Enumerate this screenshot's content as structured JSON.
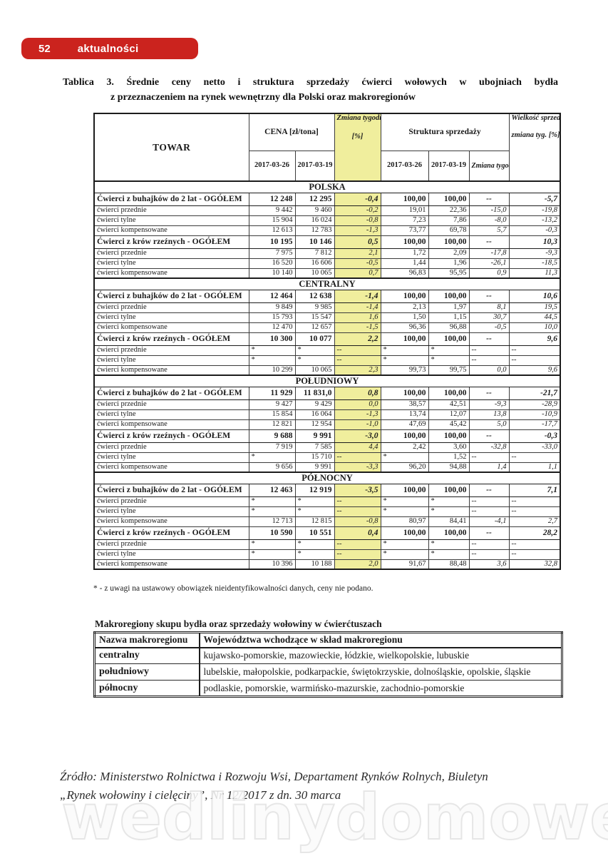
{
  "page": {
    "number": "52",
    "section_label": "aktualności"
  },
  "colors": {
    "accent_red": "#cb231e",
    "highlight_yellow": "#f0ee9d"
  },
  "title": {
    "line1": "Tablica 3. Średnie ceny netto i struktura sprzedaży ćwierci wołowych w ubojniach bydła",
    "line2": "z przeznaczeniem na rynek wewnętrzny dla Polski oraz makroregionów"
  },
  "main_table": {
    "headers": {
      "towar": "TOWAR",
      "cena": "CENA [zł/tona]",
      "zmiana_ceny": "Zmiana tygodniowa ceny",
      "zmiana_ceny_unit": "[%]",
      "struktura": "Struktura sprzedaży",
      "date1": "2017-03-26",
      "date2": "2017-03-19",
      "zmiana_tyg": "Zmiana tygodniowa [%]",
      "wielkosc": "Wielkość sprzedaży",
      "wielkosc_sub": "zmiana tyg. [%]"
    },
    "sections": [
      {
        "name": "POLSKA",
        "rows": [
          {
            "label": "Ćwierci z buhajków do 2 lat - OGÓŁEM",
            "bold": true,
            "c1": "12 248",
            "c2": "12 295",
            "zc": "-0,4",
            "s1": "100,00",
            "s2": "100,00",
            "zt": "--",
            "w": "-5,7"
          },
          {
            "label": "ćwierci przednie",
            "c1": "9 442",
            "c2": "9 460",
            "zc": "-0,2",
            "s1": "19,01",
            "s2": "22,36",
            "zt": "-15,0",
            "w": "-19,8"
          },
          {
            "label": "ćwierci tylne",
            "c1": "15 904",
            "c2": "16 024",
            "zc": "-0,8",
            "s1": "7,23",
            "s2": "7,86",
            "zt": "-8,0",
            "w": "-13,2"
          },
          {
            "label": "ćwierci kompensowane",
            "c1": "12 613",
            "c2": "12 783",
            "zc": "-1,3",
            "s1": "73,77",
            "s2": "69,78",
            "zt": "5,7",
            "w": "-0,3"
          },
          {
            "label": "Ćwierci z krów rzeźnych - OGÓŁEM",
            "bold": true,
            "c1": "10 195",
            "c2": "10 146",
            "zc": "0,5",
            "s1": "100,00",
            "s2": "100,00",
            "zt": "--",
            "w": "10,3"
          },
          {
            "label": "ćwierci przednie",
            "c1": "7 975",
            "c2": "7 812",
            "zc": "2,1",
            "s1": "1,72",
            "s2": "2,09",
            "zt": "-17,8",
            "w": "-9,3"
          },
          {
            "label": "ćwierci tylne",
            "c1": "16 520",
            "c2": "16 606",
            "zc": "-0,5",
            "s1": "1,44",
            "s2": "1,96",
            "zt": "-26,1",
            "w": "-18,5"
          },
          {
            "label": "ćwierci kompensowane",
            "c1": "10 140",
            "c2": "10 065",
            "zc": "0,7",
            "s1": "96,83",
            "s2": "95,95",
            "zt": "0,9",
            "w": "11,3"
          }
        ]
      },
      {
        "name": "CENTRALNY",
        "rows": [
          {
            "label": "Ćwierci z buhajków do 2 lat - OGÓŁEM",
            "bold": true,
            "c1": "12 464",
            "c2": "12 638",
            "zc": "-1,4",
            "s1": "100,00",
            "s2": "100,00",
            "zt": "--",
            "w": "10,6"
          },
          {
            "label": "ćwierci przednie",
            "c1": "9 849",
            "c2": "9 985",
            "zc": "-1,4",
            "s1": "2,13",
            "s2": "1,97",
            "zt": "8,1",
            "w": "19,5"
          },
          {
            "label": "ćwierci tylne",
            "c1": "15 793",
            "c2": "15 547",
            "zc": "1,6",
            "s1": "1,50",
            "s2": "1,15",
            "zt": "30,7",
            "w": "44,5"
          },
          {
            "label": "ćwierci kompensowane",
            "c1": "12 470",
            "c2": "12 657",
            "zc": "-1,5",
            "s1": "96,36",
            "s2": "96,88",
            "zt": "-0,5",
            "w": "10,0"
          },
          {
            "label": "Ćwierci z krów rzeźnych - OGÓŁEM",
            "bold": true,
            "c1": "10 300",
            "c2": "10 077",
            "zc": "2,2",
            "s1": "100,00",
            "s2": "100,00",
            "zt": "--",
            "w": "9,6"
          },
          {
            "label": "ćwierci przednie",
            "c1": "*",
            "c2": "*",
            "zc": "--",
            "s1": "*",
            "s2": "*",
            "zt": "--",
            "w": "--"
          },
          {
            "label": "ćwierci tylne",
            "c1": "*",
            "c2": "*",
            "zc": "--",
            "s1": "*",
            "s2": "*",
            "zt": "--",
            "w": "--"
          },
          {
            "label": "ćwierci kompensowane",
            "c1": "10 299",
            "c2": "10 065",
            "zc": "2,3",
            "s1": "99,73",
            "s2": "99,75",
            "zt": "0,0",
            "w": "9,6"
          }
        ]
      },
      {
        "name": "POŁUDNIOWY",
        "rows": [
          {
            "label": "Ćwierci z buhajków do 2 lat - OGÓŁEM",
            "bold": true,
            "c1": "11 929",
            "c2": "11 831,0",
            "zc": "0,8",
            "s1": "100,00",
            "s2": "100,00",
            "zt": "--",
            "w": "-21,7"
          },
          {
            "label": "ćwierci przednie",
            "c1": "9 427",
            "c2": "9 429",
            "zc": "0,0",
            "s1": "38,57",
            "s2": "42,51",
            "zt": "-9,3",
            "w": "-28,9"
          },
          {
            "label": "ćwierci tylne",
            "c1": "15 854",
            "c2": "16 064",
            "zc": "-1,3",
            "s1": "13,74",
            "s2": "12,07",
            "zt": "13,8",
            "w": "-10,9"
          },
          {
            "label": "ćwierci kompensowane",
            "c1": "12 821",
            "c2": "12 954",
            "zc": "-1,0",
            "s1": "47,69",
            "s2": "45,42",
            "zt": "5,0",
            "w": "-17,7"
          },
          {
            "label": "Ćwierci z krów rzeźnych - OGÓŁEM",
            "bold": true,
            "c1": "9 688",
            "c2": "9 991",
            "zc": "-3,0",
            "s1": "100,00",
            "s2": "100,00",
            "zt": "--",
            "w": "-0,3"
          },
          {
            "label": "ćwierci przednie",
            "c1": "7 919",
            "c2": "7 585",
            "zc": "4,4",
            "s1": "2,42",
            "s2": "3,60",
            "zt": "-32,8",
            "w": "-33,0"
          },
          {
            "label": "ćwierci tylne",
            "c1": "*",
            "c2": "15 710",
            "zc": "--",
            "s1": "*",
            "s2": "1,52",
            "zt": "--",
            "w": "--"
          },
          {
            "label": "ćwierci kompensowane",
            "c1": "9 656",
            "c2": "9 991",
            "zc": "-3,3",
            "s1": "96,20",
            "s2": "94,88",
            "zt": "1,4",
            "w": "1,1"
          }
        ]
      },
      {
        "name": "PÓŁNOCNY",
        "rows": [
          {
            "label": "Ćwierci z buhajków do 2 lat - OGÓŁEM",
            "bold": true,
            "c1": "12 463",
            "c2": "12 919",
            "zc": "-3,5",
            "s1": "100,00",
            "s2": "100,00",
            "zt": "--",
            "w": "7,1"
          },
          {
            "label": "ćwierci przednie",
            "c1": "*",
            "c2": "*",
            "zc": "--",
            "s1": "*",
            "s2": "*",
            "zt": "--",
            "w": "--"
          },
          {
            "label": "ćwierci tylne",
            "c1": "*",
            "c2": "*",
            "zc": "--",
            "s1": "*",
            "s2": "*",
            "zt": "--",
            "w": "--"
          },
          {
            "label": "ćwierci kompensowane",
            "c1": "12 713",
            "c2": "12 815",
            "zc": "-0,8",
            "s1": "80,97",
            "s2": "84,41",
            "zt": "-4,1",
            "w": "2,7"
          },
          {
            "label": "Ćwierci z krów rzeźnych - OGÓŁEM",
            "bold": true,
            "c1": "10 590",
            "c2": "10 551",
            "zc": "0,4",
            "s1": "100,00",
            "s2": "100,00",
            "zt": "--",
            "w": "28,2"
          },
          {
            "label": "ćwierci przednie",
            "c1": "*",
            "c2": "*",
            "zc": "--",
            "s1": "*",
            "s2": "*",
            "zt": "--",
            "w": "--"
          },
          {
            "label": "ćwierci tylne",
            "c1": "*",
            "c2": "*",
            "zc": "--",
            "s1": "*",
            "s2": "*",
            "zt": "--",
            "w": "--"
          },
          {
            "label": "ćwierci kompensowane",
            "c1": "10 396",
            "c2": "10 188",
            "zc": "2,0",
            "s1": "91,67",
            "s2": "88,48",
            "zt": "3,6",
            "w": "32,8"
          }
        ]
      }
    ],
    "footnote": "* - z uwagi na ustawowy obowiązek nieidentyfikowalności danych, ceny nie podano."
  },
  "regions_table": {
    "title": "Makroregiony skupu bydła oraz sprzedaży wołowiny w ćwierćtuszach",
    "headers": [
      "Nazwa makroregionu",
      "Województwa wchodzące w skład makroregionu"
    ],
    "rows": [
      [
        "centralny",
        "kujawsko-pomorskie, mazowieckie, łódzkie, wielkopolskie, lubuskie"
      ],
      [
        "południowy",
        "lubelskie, małopolskie, podkarpackie, świętokrzyskie, dolnośląskie, opolskie, śląskie"
      ],
      [
        "północny",
        "podlaskie, pomorskie, warmińsko-mazurskie, zachodnio-pomorskie"
      ]
    ]
  },
  "source": {
    "line1": "Źródło: Ministerstwo Rolnictwa i Rozwoju Wsi, Departament Rynków Rolnych, Biuletyn",
    "line2": "„Rynek wołowiny i cielęciny”, Nr 12/2017 z dn. 30 marca"
  },
  "watermark": "wedlinydomowe.pl"
}
